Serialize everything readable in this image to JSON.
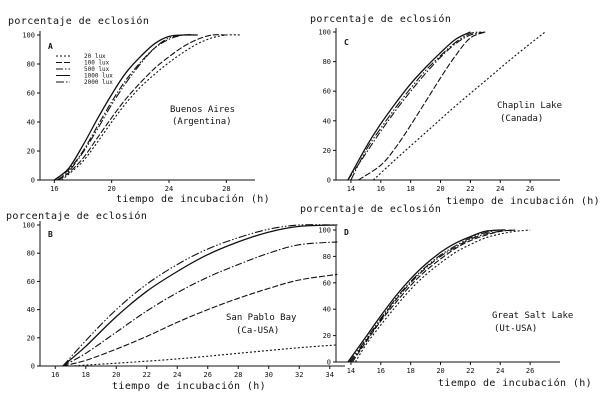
{
  "chart_data": [
    {
      "type": "line",
      "panel": "A",
      "ylabel": "porcentaje de eclosión",
      "xlabel": "tiempo de incubación (h)",
      "location": "Buenos Aires",
      "location_sub": "(Argentina)",
      "xlim": [
        15,
        30
      ],
      "ylim": [
        0,
        100
      ],
      "xticks": [
        16,
        20,
        24,
        28
      ],
      "yticks": [
        0,
        20,
        40,
        60,
        80,
        100
      ],
      "legend": [
        "20 lux",
        "100 lux",
        "500 lux",
        "1000 lux",
        "2000 lux"
      ],
      "series": [
        {
          "name": "20 lux",
          "x": [
            16.5,
            17,
            18,
            19,
            20,
            21,
            22,
            23,
            24,
            25,
            26,
            27,
            28,
            29
          ],
          "y": [
            0,
            4,
            13,
            26,
            40,
            53,
            64,
            73,
            81,
            88,
            94,
            98,
            100,
            100
          ]
        },
        {
          "name": "100 lux",
          "x": [
            16.3,
            17,
            18,
            19,
            20,
            21,
            22,
            23,
            24,
            25,
            26,
            27,
            28
          ],
          "y": [
            0,
            5,
            15,
            29,
            43,
            56,
            67,
            77,
            85,
            92,
            97,
            100,
            100
          ]
        },
        {
          "name": "500 lux",
          "x": [
            16,
            17,
            18,
            19,
            20,
            21,
            22,
            23,
            24,
            25,
            26
          ],
          "y": [
            0,
            7,
            20,
            37,
            54,
            69,
            81,
            91,
            97,
            100,
            100
          ]
        },
        {
          "name": "1000 lux",
          "x": [
            16,
            17,
            18,
            19,
            20,
            21,
            22,
            23,
            24,
            25,
            26
          ],
          "y": [
            0,
            8,
            24,
            42,
            59,
            74,
            85,
            94,
            99,
            100,
            100
          ]
        },
        {
          "name": "2000 lux",
          "x": [
            16.2,
            17,
            18,
            19,
            20,
            21,
            22,
            23,
            24,
            25
          ],
          "y": [
            0,
            6,
            19,
            35,
            52,
            67,
            80,
            91,
            98,
            100
          ]
        }
      ]
    },
    {
      "type": "line",
      "panel": "C",
      "ylabel": "porcentaje de eclosión",
      "xlabel": "tiempo de incubación (h)",
      "location": "Chaplin Lake",
      "location_sub": "(Canada)",
      "xlim": [
        13,
        28
      ],
      "ylim": [
        0,
        100
      ],
      "xticks": [
        14,
        16,
        18,
        20,
        22,
        24,
        26
      ],
      "yticks": [
        0,
        20,
        40,
        60,
        80,
        100
      ],
      "legend": [],
      "series": [
        {
          "name": "20 lux",
          "x": [
            15.5,
            17,
            19,
            21,
            23,
            25,
            27
          ],
          "y": [
            0,
            14,
            32,
            50,
            67,
            84,
            100
          ]
        },
        {
          "name": "100 lux",
          "x": [
            14.5,
            16,
            17,
            18,
            19,
            20,
            21,
            22,
            23
          ],
          "y": [
            0,
            10,
            22,
            37,
            53,
            69,
            84,
            96,
            100
          ]
        },
        {
          "name": "500 lux",
          "x": [
            13.8,
            15,
            16,
            17,
            18,
            19,
            20,
            21,
            22,
            23
          ],
          "y": [
            0,
            18,
            33,
            47,
            60,
            72,
            83,
            92,
            98,
            100
          ]
        },
        {
          "name": "1000 lux",
          "x": [
            13.8,
            15,
            16,
            17,
            18,
            19,
            20,
            21,
            22
          ],
          "y": [
            0,
            22,
            38,
            52,
            65,
            76,
            86,
            95,
            100
          ]
        },
        {
          "name": "2000 lux",
          "x": [
            14,
            15,
            16,
            17,
            18,
            19,
            20,
            21,
            22,
            22.8
          ],
          "y": [
            0,
            20,
            35,
            49,
            62,
            74,
            84,
            93,
            99,
            100
          ]
        }
      ]
    },
    {
      "type": "line",
      "panel": "B",
      "ylabel": "porcentaje de eclosión",
      "xlabel": "tiempo de incubación (h)",
      "location": "San Pablo Bay",
      "location_sub": "(Ca-USA)",
      "xlim": [
        15,
        35
      ],
      "ylim": [
        0,
        100
      ],
      "xticks": [
        16,
        18,
        20,
        22,
        24,
        26,
        28,
        30,
        32,
        34
      ],
      "yticks": [
        0,
        20,
        40,
        60,
        80,
        100
      ],
      "legend": [],
      "series": [
        {
          "name": "20 lux",
          "x": [
            17,
            20,
            24,
            28,
            32,
            34.5
          ],
          "y": [
            0,
            2,
            5,
            9,
            13,
            15
          ]
        },
        {
          "name": "100 lux",
          "x": [
            16.5,
            18,
            20,
            22,
            24,
            26,
            28,
            30,
            32,
            34.5
          ],
          "y": [
            0,
            4,
            12,
            21,
            31,
            40,
            48,
            55,
            61,
            65
          ]
        },
        {
          "name": "500 lux",
          "x": [
            16.5,
            18,
            20,
            22,
            24,
            26,
            28,
            30,
            32,
            34.5
          ],
          "y": [
            0,
            9,
            24,
            39,
            52,
            63,
            72,
            80,
            86,
            88
          ]
        },
        {
          "name": "1000 lux",
          "x": [
            16.5,
            18,
            20,
            22,
            24,
            26,
            28,
            30,
            32,
            34.5
          ],
          "y": [
            0,
            14,
            35,
            53,
            67,
            79,
            88,
            95,
            99,
            100
          ]
        },
        {
          "name": "2000 lux",
          "x": [
            16.5,
            18,
            20,
            22,
            24,
            26,
            28,
            30,
            32,
            34.5
          ],
          "y": [
            0,
            18,
            40,
            58,
            72,
            83,
            91,
            97,
            100,
            100
          ]
        }
      ]
    },
    {
      "type": "line",
      "panel": "D",
      "ylabel": "porcentaje de eclosión",
      "xlabel": "tiempo de incubación (h)",
      "location": "Great Salt Lake",
      "location_sub": "(Ut-USA)",
      "xlim": [
        13,
        28
      ],
      "ylim": [
        0,
        100
      ],
      "xticks": [
        14,
        16,
        18,
        20,
        22,
        24,
        26
      ],
      "yticks": [
        0,
        20,
        40,
        60,
        80,
        100
      ],
      "legend": [],
      "series": [
        {
          "name": "20 lux",
          "x": [
            14.3,
            15,
            16,
            17,
            18,
            19,
            20,
            21,
            22,
            23,
            24,
            25,
            26
          ],
          "y": [
            0,
            13,
            28,
            42,
            55,
            66,
            75,
            83,
            89,
            94,
            97,
            99,
            100
          ]
        },
        {
          "name": "100 lux",
          "x": [
            14.1,
            15,
            16,
            17,
            18,
            19,
            20,
            21,
            22,
            23,
            24,
            25
          ],
          "y": [
            0,
            15,
            31,
            45,
            58,
            69,
            78,
            86,
            92,
            96,
            99,
            100
          ]
        },
        {
          "name": "500 lux",
          "x": [
            14,
            15,
            16,
            17,
            18,
            19,
            20,
            21,
            22,
            23,
            24,
            25
          ],
          "y": [
            0,
            16,
            32,
            47,
            60,
            71,
            80,
            87,
            93,
            97,
            99,
            100
          ]
        },
        {
          "name": "1000 lux",
          "x": [
            13.8,
            15,
            16,
            17,
            18,
            19,
            20,
            21,
            22,
            23,
            24
          ],
          "y": [
            0,
            19,
            35,
            50,
            63,
            74,
            83,
            90,
            95,
            99,
            100
          ]
        },
        {
          "name": "2000 lux",
          "x": [
            13.9,
            15,
            16,
            17,
            18,
            19,
            20,
            21,
            22,
            23,
            24,
            24.5
          ],
          "y": [
            0,
            17,
            33,
            48,
            61,
            72,
            81,
            88,
            94,
            98,
            100,
            100
          ]
        }
      ]
    }
  ]
}
